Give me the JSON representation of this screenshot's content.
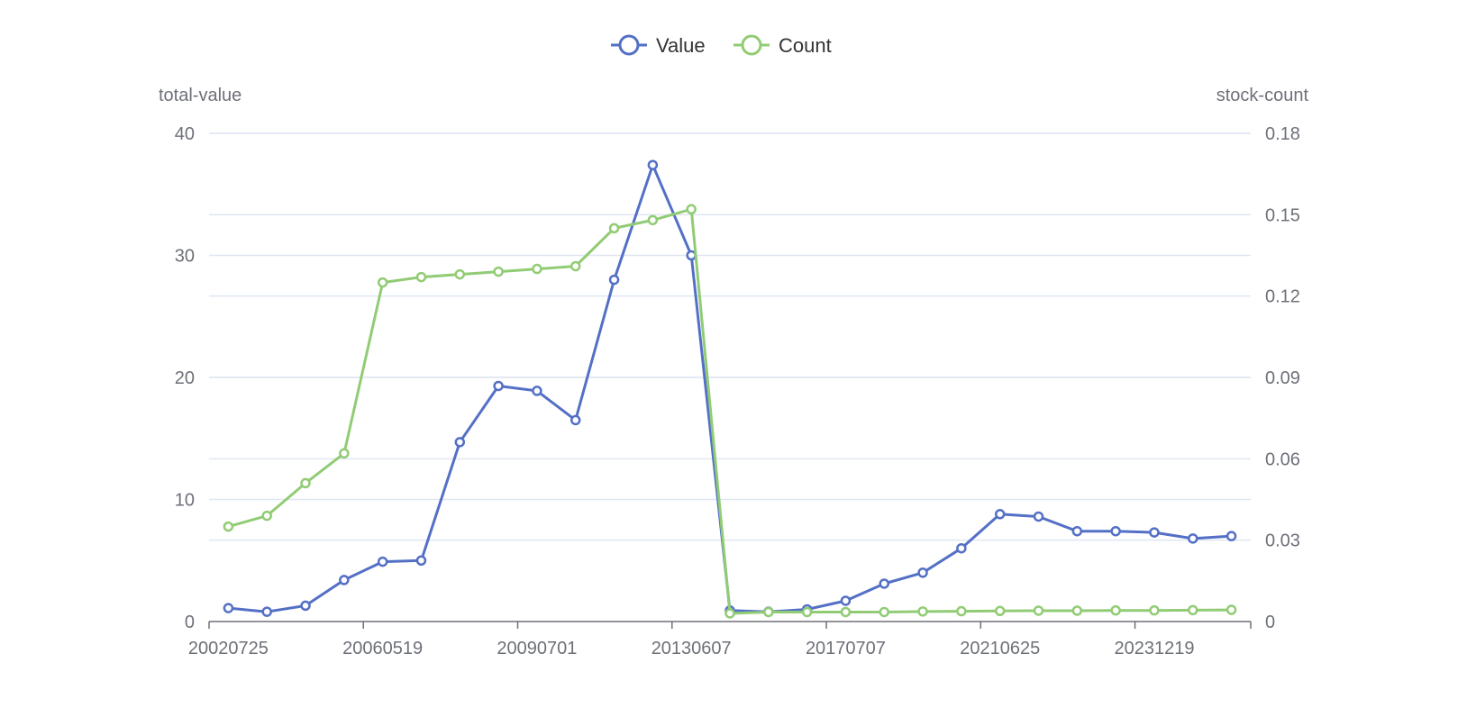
{
  "chart_data": {
    "type": "line",
    "title": "",
    "legend": {
      "position": "top-center",
      "items": [
        "Value",
        "Count"
      ]
    },
    "x_axis": {
      "labels_shown": [
        "20020725",
        "20060519",
        "20090701",
        "20130607",
        "20170707",
        "20210625",
        "20231219"
      ]
    },
    "y_axis_left": {
      "name": "total-value",
      "range": [
        0,
        40
      ],
      "ticks": [
        "0",
        "10",
        "20",
        "30",
        "40"
      ]
    },
    "y_axis_right": {
      "name": "stock-count",
      "range": [
        0,
        0.18
      ],
      "ticks": [
        "0",
        "0.03",
        "0.06",
        "0.09",
        "0.12",
        "0.15",
        "0.18"
      ]
    },
    "grid": true,
    "series": [
      {
        "name": "Value",
        "axis": "left",
        "color": "#5470c6",
        "values": [
          1.1,
          0.8,
          1.3,
          3.4,
          4.9,
          5.0,
          14.7,
          19.3,
          18.9,
          16.5,
          28.0,
          37.4,
          30.0,
          0.9,
          0.8,
          1.0,
          1.7,
          3.1,
          4.0,
          6.0,
          8.8,
          8.6,
          7.4,
          7.4,
          7.3,
          6.8,
          7.0
        ]
      },
      {
        "name": "Count",
        "axis": "right",
        "color": "#91cc75",
        "values": [
          0.035,
          0.039,
          0.051,
          0.062,
          0.125,
          0.127,
          0.128,
          0.129,
          0.13,
          0.131,
          0.145,
          0.148,
          0.152,
          0.003,
          0.0035,
          0.0035,
          0.0035,
          0.0035,
          0.0037,
          0.0038,
          0.0039,
          0.004,
          0.004,
          0.0041,
          0.0041,
          0.0042,
          0.0043
        ]
      }
    ]
  }
}
